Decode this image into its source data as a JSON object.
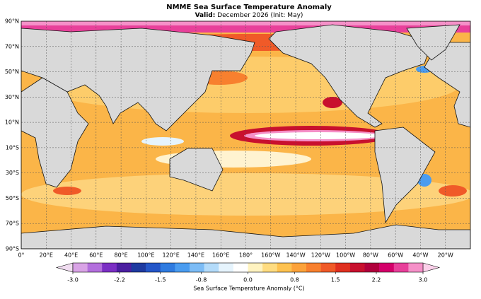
{
  "title": "NMME Sea Surface Temperature Anomaly",
  "subtitle": {
    "prefix": "Valid",
    "separator": ":",
    "text": "December 2026 (Init: May)"
  },
  "latitude_labels": [
    "90°N",
    "70°N",
    "50°N",
    "30°N",
    "10°N",
    "10°S",
    "30°S",
    "50°S",
    "70°S",
    "90°S"
  ],
  "longitude_labels": [
    "0°",
    "20°E",
    "40°E",
    "60°E",
    "80°E",
    "100°E",
    "120°E",
    "140°E",
    "160°E",
    "180°",
    "160°W",
    "140°W",
    "120°W",
    "100°W",
    "80°W",
    "60°W",
    "40°W",
    "20°W"
  ],
  "colorbar": {
    "label": "Sea Surface Temperature Anomaly (°C)",
    "lim": [
      -3,
      3
    ],
    "ticks": [
      {
        "value": -3,
        "label": "-3.0"
      },
      {
        "value": -2.2,
        "label": "-2.2"
      },
      {
        "value": -1.5,
        "label": "-1.5"
      },
      {
        "value": -0.8,
        "label": "-0.8"
      },
      {
        "value": 0,
        "label": "0.0"
      },
      {
        "value": 0.8,
        "label": "0.8"
      },
      {
        "value": 1.5,
        "label": "1.5"
      },
      {
        "value": 2.2,
        "label": "2.2"
      },
      {
        "value": 3,
        "label": "3.0"
      }
    ],
    "colors": [
      "#d9a3e6",
      "#b36fdd",
      "#7b2fc4",
      "#4b1fa0",
      "#1e3aa0",
      "#2456c8",
      "#2f7be0",
      "#4a9cf0",
      "#7cbcf6",
      "#b3dbfa",
      "#e6f4fd",
      "#ffffff",
      "#fff3c0",
      "#ffdc80",
      "#fec250",
      "#fca23a",
      "#f8802e",
      "#f05a28",
      "#e03020",
      "#c8102e",
      "#b0003c",
      "#d4006a",
      "#e8409a",
      "#f590c8"
    ],
    "under_color": "#f0dcf0",
    "over_color": "#fbd0ea"
  }
}
